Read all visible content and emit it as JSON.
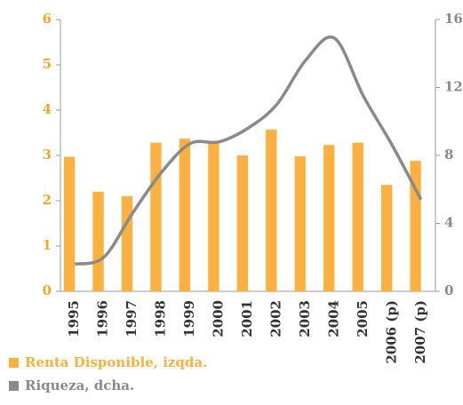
{
  "chart_data": {
    "type": "bar-line",
    "categories": [
      "1995",
      "1996",
      "1997",
      "1998",
      "1999",
      "2000",
      "2001",
      "2002",
      "2003",
      "2004",
      "2005",
      "2006 (p)",
      "2007 (p)"
    ],
    "series": [
      {
        "name": "Renta Disponible, izqda.",
        "type": "bar",
        "axis": "y",
        "color": "#fbb040",
        "values": [
          2.97,
          2.2,
          2.1,
          3.28,
          3.37,
          3.3,
          3.0,
          3.57,
          2.98,
          3.23,
          3.28,
          2.35,
          2.88
        ]
      },
      {
        "name": "Riqueza, dcha.",
        "type": "line",
        "axis": "y2",
        "color": "#8a8a8a",
        "values": [
          1.6,
          2.0,
          4.6,
          7.0,
          8.7,
          8.8,
          9.6,
          11.0,
          13.6,
          14.9,
          11.5,
          8.6,
          5.4
        ]
      }
    ],
    "ylim": [
      0,
      6
    ],
    "yticks": [
      0,
      1,
      2,
      3,
      4,
      5,
      6
    ],
    "y2lim": [
      0,
      16
    ],
    "y2ticks": [
      0,
      4,
      8,
      12,
      16
    ],
    "y_color": "#f5a623",
    "y2_color": "#8a8a8a",
    "legend": "bottom-left"
  }
}
